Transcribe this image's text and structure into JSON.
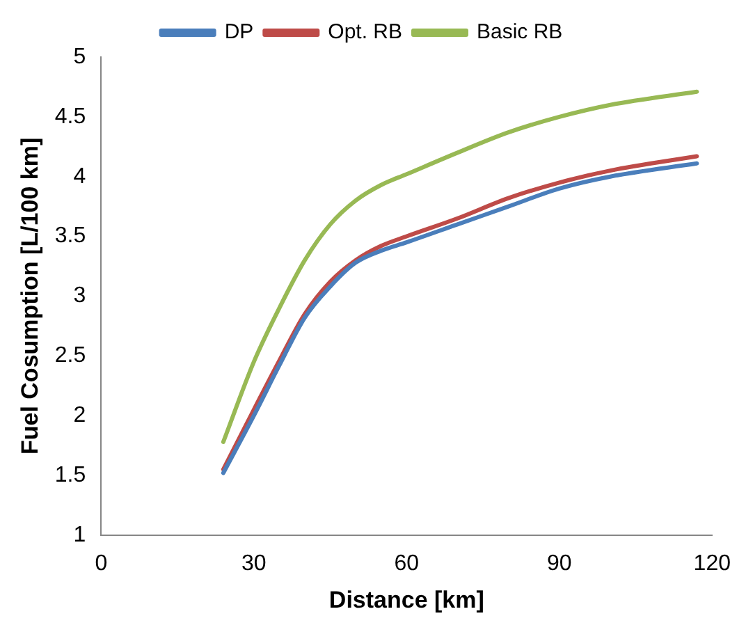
{
  "chart_data": {
    "type": "line",
    "xlabel": "Distance [km]",
    "ylabel": "Fuel Cosumption [L/100 km]",
    "xlim": [
      0,
      120
    ],
    "xticks": [
      0,
      30,
      60,
      90,
      120
    ],
    "ylim": [
      1,
      5
    ],
    "yticks": [
      1,
      1.5,
      2,
      2.5,
      3,
      3.5,
      4,
      4.5,
      5
    ],
    "grid": false,
    "legend": "top",
    "marker": "none",
    "x": [
      24,
      30,
      35,
      40,
      45,
      50,
      55,
      60,
      70,
      80,
      90,
      100,
      117
    ],
    "series": [
      {
        "name": "DP",
        "color": "#4a7ebb",
        "values": [
          1.52,
          2.0,
          2.42,
          2.82,
          3.08,
          3.28,
          3.38,
          3.45,
          3.6,
          3.75,
          3.9,
          4.0,
          4.11
        ]
      },
      {
        "name": "Opt. RB",
        "color": "#be4b48",
        "values": [
          1.55,
          2.05,
          2.46,
          2.85,
          3.12,
          3.3,
          3.42,
          3.5,
          3.65,
          3.82,
          3.95,
          4.05,
          4.17
        ]
      },
      {
        "name": "Basic RB",
        "color": "#98b954",
        "values": [
          1.78,
          2.45,
          2.9,
          3.3,
          3.6,
          3.8,
          3.93,
          4.02,
          4.2,
          4.37,
          4.5,
          4.6,
          4.71
        ]
      }
    ]
  }
}
